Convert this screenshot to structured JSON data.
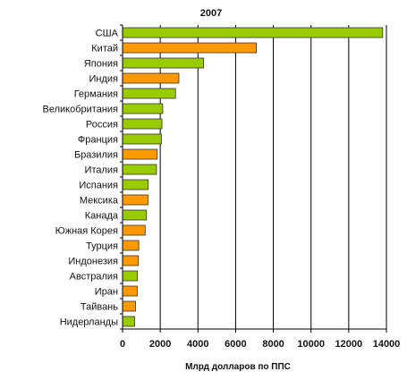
{
  "chart_data": {
    "type": "bar",
    "orientation": "horizontal",
    "title": "2007",
    "xlabel": "Млрд долларов по ППС",
    "ylabel": "",
    "xlim": [
      0,
      14000
    ],
    "xticks": [
      0,
      2000,
      4000,
      6000,
      8000,
      10000,
      12000,
      14000
    ],
    "grid": true,
    "legend": "none",
    "categories": [
      "США",
      "Китай",
      "Япония",
      "Индия",
      "Германия",
      "Великобритания",
      "Россия",
      "Франция",
      "Бразилия",
      "Италия",
      "Испания",
      "Мексика",
      "Канада",
      "Южная Корея",
      "Турция",
      "Индонезия",
      "Австралия",
      "Иран",
      "Тайвань",
      "Нидерланды"
    ],
    "values": [
      13800,
      7100,
      4300,
      2990,
      2810,
      2130,
      2090,
      2060,
      1840,
      1800,
      1360,
      1350,
      1270,
      1200,
      860,
      840,
      790,
      780,
      690,
      640
    ],
    "bar_colors": [
      "#99cc00",
      "#ff9900",
      "#99cc00",
      "#ff9900",
      "#99cc00",
      "#99cc00",
      "#99cc00",
      "#99cc00",
      "#ff9900",
      "#99cc00",
      "#99cc00",
      "#ff9900",
      "#99cc00",
      "#ff9900",
      "#ff9900",
      "#ff9900",
      "#99cc00",
      "#ff9900",
      "#ff9900",
      "#99cc00"
    ],
    "bar_stroke_color": "#333333"
  }
}
